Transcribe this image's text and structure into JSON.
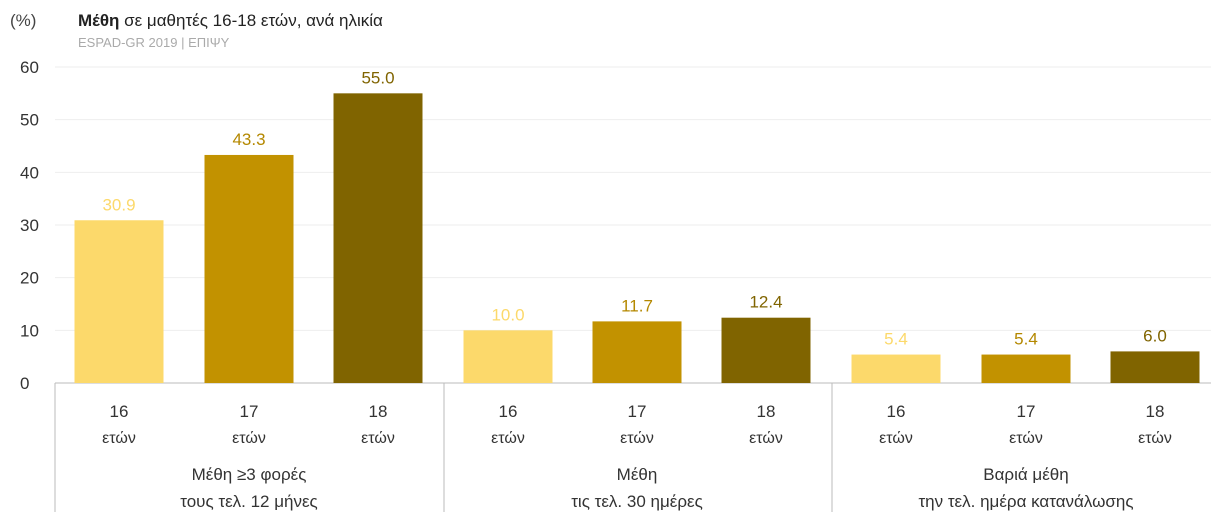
{
  "header": {
    "unit": "(%)",
    "title_bold": "Μέθη",
    "title_rest": " σε μαθητές 16-18 ετών, ανά ηλικία",
    "source": "ESPAD-GR 2019 | ΕΠΙΨΥ"
  },
  "chart_data": {
    "type": "bar",
    "ylim": [
      0,
      60
    ],
    "yticks": [
      0,
      10,
      20,
      30,
      40,
      50,
      60
    ],
    "grid": true,
    "groups": [
      {
        "label_lines": [
          "Μέθη ≥3 φορές",
          "τους τελ. 12 μήνες"
        ],
        "bars": [
          {
            "age": "16",
            "unit": "ετών",
            "value": 30.9,
            "label": "30.9"
          },
          {
            "age": "17",
            "unit": "ετών",
            "value": 43.3,
            "label": "43.3"
          },
          {
            "age": "18",
            "unit": "ετών",
            "value": 55.0,
            "label": "55.0"
          }
        ]
      },
      {
        "label_lines": [
          "Μέθη",
          "τις τελ. 30 ημέρες"
        ],
        "bars": [
          {
            "age": "16",
            "unit": "ετών",
            "value": 10.0,
            "label": "10.0"
          },
          {
            "age": "17",
            "unit": "ετών",
            "value": 11.7,
            "label": "11.7"
          },
          {
            "age": "18",
            "unit": "ετών",
            "value": 12.4,
            "label": "12.4"
          }
        ]
      },
      {
        "label_lines": [
          "Βαριά μέθη",
          "την τελ. ημέρα κατανάλωσης"
        ],
        "bars": [
          {
            "age": "16",
            "unit": "ετών",
            "value": 5.4,
            "label": "5.4"
          },
          {
            "age": "17",
            "unit": "ετών",
            "value": 5.4,
            "label": "5.4"
          },
          {
            "age": "18",
            "unit": "ετών",
            "value": 6.0,
            "label": "6.0"
          }
        ]
      }
    ],
    "colors": {
      "bar_16": "#FCD96B",
      "bar_17": "#C29200",
      "bar_18": "#806400",
      "label_16": "#FCD96B",
      "label_17": "#B48800",
      "label_18": "#806400",
      "grid": "#eeeeee",
      "axis": "#bbbbbb",
      "tick_text": "#333333"
    }
  }
}
